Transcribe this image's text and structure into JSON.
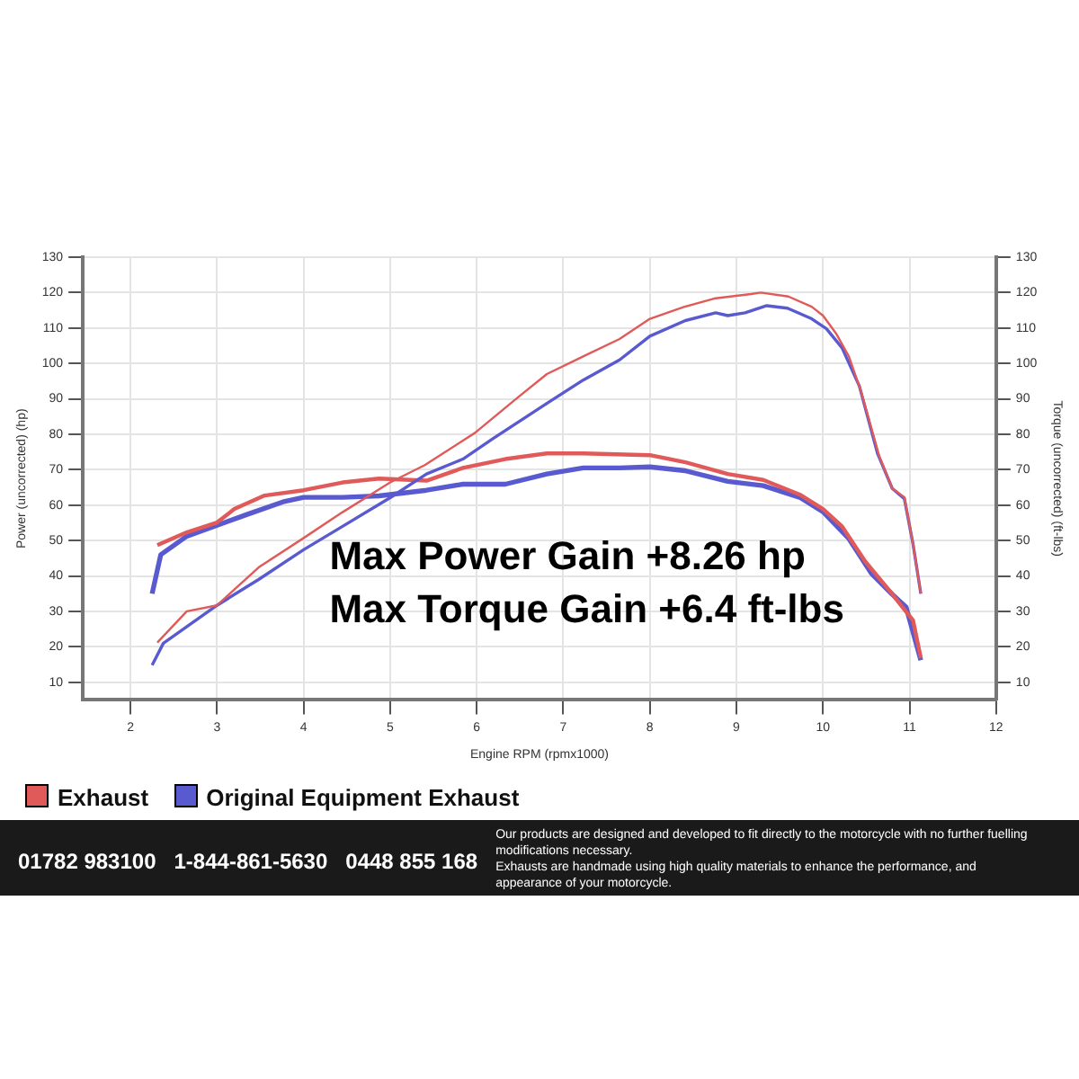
{
  "chart_data": {
    "type": "line",
    "xlabel": "Engine RPM (rpmx1000)",
    "ylabel": "Power (uncorrected) (hp)",
    "y2label": "Torque (uncorrected) (ft-lbs)",
    "xlim": [
      1.45,
      12
    ],
    "xticks": [
      2,
      3,
      4,
      5,
      6,
      7,
      8,
      9,
      10,
      11,
      12
    ],
    "ylim": [
      5,
      130
    ],
    "yticks": [
      10,
      20,
      30,
      40,
      50,
      60,
      70,
      80,
      90,
      100,
      110,
      120,
      130
    ],
    "y2lim": [
      5,
      130
    ],
    "y2ticks": [
      10,
      20,
      30,
      40,
      50,
      60,
      70,
      80,
      90,
      100,
      110,
      120,
      130
    ],
    "grid": true,
    "legend": "bottom left",
    "marker": "none",
    "line_style": "solid",
    "series": [
      {
        "name": "Exhaust",
        "color": "#e05a5a",
        "x": [
          2.31,
          2.65,
          3.0,
          3.48,
          4.0,
          4.45,
          5.0,
          5.4,
          5.98,
          6.47,
          6.81,
          7.23,
          7.65,
          8.0,
          8.4,
          8.76,
          9.17,
          9.28,
          9.6,
          9.87,
          10.0,
          10.15,
          10.3,
          10.44,
          10.65,
          10.8,
          10.94,
          11.04,
          11.13
        ],
        "values": [
          21.2,
          30,
          31.7,
          42.4,
          50.7,
          58,
          66.4,
          71.3,
          80.4,
          90.3,
          97,
          102,
          106.9,
          112.6,
          116,
          118.4,
          119.6,
          120,
          118.9,
          116,
          113.5,
          108.5,
          101.9,
          92,
          73.8,
          64.7,
          62.2,
          49,
          35
        ]
      },
      {
        "name": "Original Equipment Exhaust",
        "color": "#5a5ad0",
        "x": [
          2.25,
          2.38,
          3.0,
          3.48,
          4.0,
          4.45,
          5.0,
          5.42,
          5.84,
          6.19,
          6.81,
          7.23,
          7.65,
          8.0,
          8.41,
          8.76,
          8.9,
          9.1,
          9.35,
          9.59,
          9.87,
          10.04,
          10.22,
          10.42,
          10.63,
          10.8,
          10.94,
          11.04,
          11.13
        ],
        "values": [
          14.8,
          21,
          31.7,
          39,
          47.4,
          54,
          62.1,
          68.8,
          73,
          78.8,
          88.7,
          95.3,
          101,
          107.7,
          112.1,
          114.3,
          113.5,
          114.3,
          116.3,
          115.6,
          112.6,
          109.8,
          104.4,
          93.6,
          74.6,
          64.7,
          61.8,
          49,
          35
        ]
      },
      {
        "color": "#e05a5a",
        "x": [
          2.31,
          2.65,
          3.0,
          3.2,
          3.55,
          4.0,
          4.45,
          4.87,
          5.42,
          5.84,
          6.33,
          6.81,
          7.23,
          8.0,
          8.41,
          8.9,
          9.31,
          9.73,
          10.0,
          10.22,
          10.49,
          10.77,
          10.94,
          11.04,
          11.13
        ],
        "values": [
          48.7,
          52.3,
          55.1,
          58.9,
          62.7,
          64.2,
          66.4,
          67.5,
          66.9,
          70.5,
          73,
          74.6,
          74.6,
          74.1,
          72.1,
          68.8,
          67.1,
          63,
          58.9,
          54,
          44,
          35.8,
          30.5,
          27.5,
          16.8
        ]
      },
      {
        "color": "#5a5ad0",
        "x": [
          2.25,
          2.35,
          2.65,
          3.0,
          3.34,
          3.76,
          4.0,
          4.45,
          4.87,
          5.42,
          5.84,
          6.33,
          6.81,
          7.23,
          7.65,
          8.0,
          8.41,
          8.9,
          9.31,
          9.73,
          10.0,
          10.3,
          10.56,
          10.8,
          10.96,
          11.13
        ],
        "values": [
          35,
          46,
          51.2,
          54.3,
          57.3,
          60.9,
          62.2,
          62.2,
          62.6,
          64.2,
          65.9,
          65.9,
          68.8,
          70.5,
          70.5,
          70.8,
          69.7,
          66.7,
          65.5,
          62.2,
          58.1,
          50.5,
          40.7,
          34.8,
          31.2,
          16.2
        ]
      }
    ],
    "annotations": [
      "Max Power Gain +8.26 hp",
      "Max Torque Gain +6.4 ft-lbs",
      "01782 983100",
      "1-844-861-5630",
      "0448 855 168",
      "Our products are designed and developed to fit directly to the motorcycle with no further fuelling modifications necessary.",
      "Exhausts are handmade using high quality materials to enhance the performance, and appearance of your motorcycle."
    ]
  }
}
